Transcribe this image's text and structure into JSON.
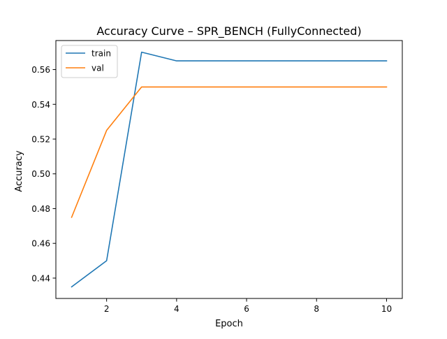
{
  "chart_data": {
    "type": "line",
    "title": "Accuracy Curve – SPR_BENCH (FullyConnected)",
    "xlabel": "Epoch",
    "ylabel": "Accuracy",
    "xlim": [
      0.55,
      10.45
    ],
    "ylim": [
      0.4283,
      0.5767
    ],
    "x_ticks": [
      2,
      4,
      6,
      8,
      10
    ],
    "x_tick_labels": [
      "2",
      "4",
      "6",
      "8",
      "10"
    ],
    "y_ticks": [
      0.44,
      0.46,
      0.48,
      0.5,
      0.52,
      0.54,
      0.56
    ],
    "y_tick_labels": [
      "0.44",
      "0.46",
      "0.48",
      "0.50",
      "0.52",
      "0.54",
      "0.56"
    ],
    "grid": false,
    "legend": {
      "placement": "upper-left"
    },
    "x": [
      1,
      2,
      3,
      4,
      5,
      6,
      7,
      8,
      9,
      10
    ],
    "series": [
      {
        "name": "train",
        "color": "#1f77b4",
        "values": [
          0.435,
          0.45,
          0.57,
          0.565,
          0.565,
          0.565,
          0.565,
          0.565,
          0.565,
          0.565
        ]
      },
      {
        "name": "val",
        "color": "#ff7f0e",
        "values": [
          0.475,
          0.525,
          0.55,
          0.55,
          0.55,
          0.55,
          0.55,
          0.55,
          0.55,
          0.55
        ]
      }
    ]
  }
}
